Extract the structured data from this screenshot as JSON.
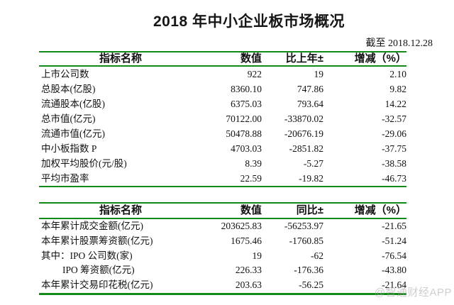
{
  "page": {
    "title": "2018 年中小企业板市场概况",
    "as_of": "截至 2018.12.28",
    "watermark": "@智通财经APP"
  },
  "colors": {
    "rule_green": "#128a18",
    "text": "#121212",
    "watermark_gray": "#a5a5a5"
  },
  "tables": [
    {
      "name": "market-overview",
      "headers": [
        "指标名称",
        "数值",
        "比上年±",
        "增减（%）"
      ],
      "rows": [
        {
          "label": "上市公司数",
          "indent": false,
          "values": [
            "922",
            "19",
            "2.10"
          ]
        },
        {
          "label": "总股本(亿股)",
          "indent": false,
          "values": [
            "8360.10",
            "747.86",
            "9.82"
          ]
        },
        {
          "label": "流通股本(亿股)",
          "indent": false,
          "values": [
            "6375.03",
            "793.64",
            "14.22"
          ]
        },
        {
          "label": "总市值(亿元)",
          "indent": false,
          "values": [
            "70122.00",
            "-33870.02",
            "-32.57"
          ]
        },
        {
          "label": "流通市值(亿元)",
          "indent": false,
          "values": [
            "50478.88",
            "-20676.19",
            "-29.06"
          ]
        },
        {
          "label": "中小板指数 P",
          "indent": false,
          "values": [
            "4703.03",
            "-2851.82",
            "-37.75"
          ]
        },
        {
          "label": "加权平均股价(元/股)",
          "indent": false,
          "values": [
            "8.39",
            "-5.27",
            "-38.58"
          ]
        },
        {
          "label": "平均市盈率",
          "indent": false,
          "values": [
            "22.59",
            "-19.82",
            "-46.73"
          ]
        }
      ]
    },
    {
      "name": "yearly-trading",
      "headers": [
        "指标名称",
        "数值",
        "同比±",
        "增减（%）"
      ],
      "rows": [
        {
          "label": "本年累计成交金额(亿元)",
          "indent": false,
          "values": [
            "203625.83",
            "-56253.97",
            "-21.65"
          ]
        },
        {
          "label": "本年累计股票筹资额(亿元)",
          "indent": false,
          "values": [
            "1675.46",
            "-1760.85",
            "-51.24"
          ]
        },
        {
          "label": "其中：IPO 公司数(家)",
          "indent": false,
          "values": [
            "19",
            "-62",
            "-76.54"
          ]
        },
        {
          "label": "IPO 筹资额(亿元)",
          "indent": true,
          "values": [
            "226.33",
            "-176.36",
            "-43.80"
          ]
        },
        {
          "label": "本年累计交易印花税(亿元)",
          "indent": false,
          "values": [
            "203.63",
            "-56.25",
            "-21.64"
          ]
        }
      ]
    }
  ]
}
